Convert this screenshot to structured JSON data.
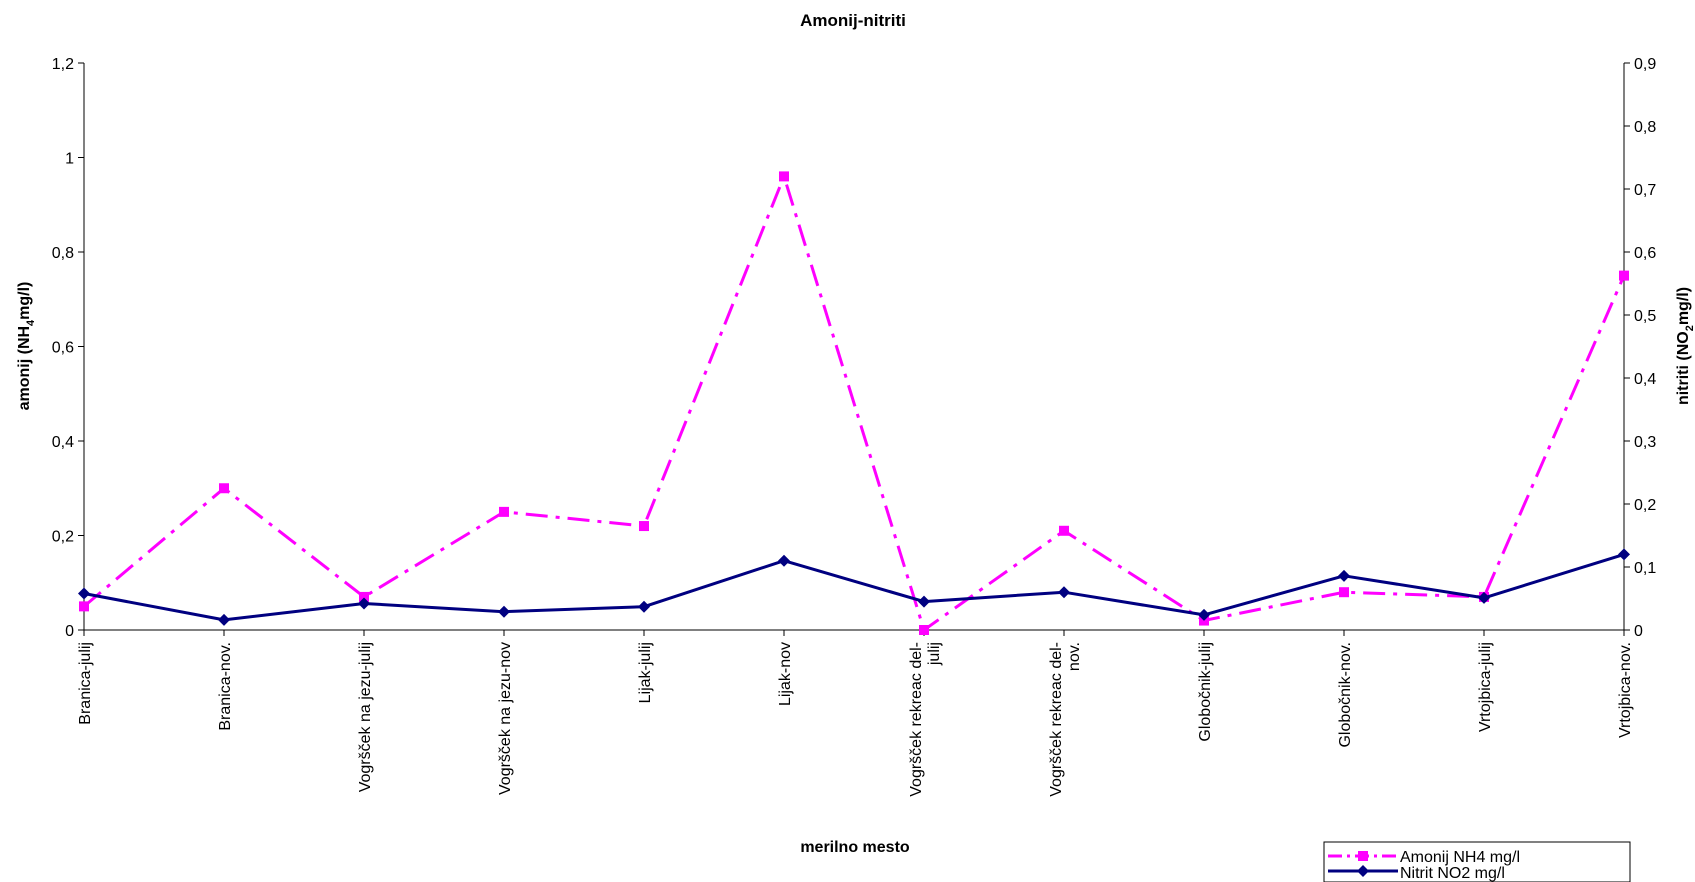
{
  "chart_data": {
    "type": "line",
    "title": "Amonij-nitriti",
    "xlabel": "merilno mesto",
    "ylabel": {
      "prefix": "amonij (NH",
      "sub": "4",
      "suffix": "mg/l)"
    },
    "y2label": {
      "prefix": "nitriti (NO",
      "sub": "2",
      "suffix": "mg/l)"
    },
    "categories": [
      [
        "Branica-julij"
      ],
      [
        "Branica-nov."
      ],
      [
        "Vogršček na jezu-julij"
      ],
      [
        "Vogršček na jezu-nov"
      ],
      [
        "Lijak-julij"
      ],
      [
        "Lijak-nov"
      ],
      [
        "Vogršček rekreac del-",
        "julij"
      ],
      [
        "Vogršček rekreac del-",
        "nov."
      ],
      [
        "Globočnik-julij"
      ],
      [
        "Globočnik-nov."
      ],
      [
        "Vrtojbica-julij"
      ],
      [
        "Vrtojbica-nov."
      ]
    ],
    "ylim": [
      0,
      1.2
    ],
    "y_ticks": [
      "0",
      "0,2",
      "0,4",
      "0,6",
      "0,8",
      "1",
      "1,2"
    ],
    "y2lim": [
      0,
      0.9
    ],
    "y2_ticks": [
      "0",
      "0,1",
      "0,2",
      "0,3",
      "0,4",
      "0,5",
      "0,6",
      "0,7",
      "0,8",
      "0,9"
    ],
    "grid": false,
    "legend_position": "bottom-right",
    "series": [
      {
        "name": "Amonij NH4 mg/l",
        "axis": "left",
        "color": "#ff00ff",
        "marker": "square",
        "line_style": "dash-dot",
        "values": [
          0.05,
          0.3,
          0.07,
          0.25,
          0.22,
          0.96,
          0.0,
          0.21,
          0.02,
          0.08,
          0.07,
          0.75
        ]
      },
      {
        "name": "Nitrit NO2 mg/l",
        "axis": "right",
        "color": "#000080",
        "marker": "diamond",
        "line_style": "solid",
        "values": [
          0.058,
          0.016,
          0.042,
          0.029,
          0.037,
          0.11,
          0.045,
          0.06,
          0.024,
          0.086,
          0.051,
          0.12
        ]
      }
    ]
  }
}
